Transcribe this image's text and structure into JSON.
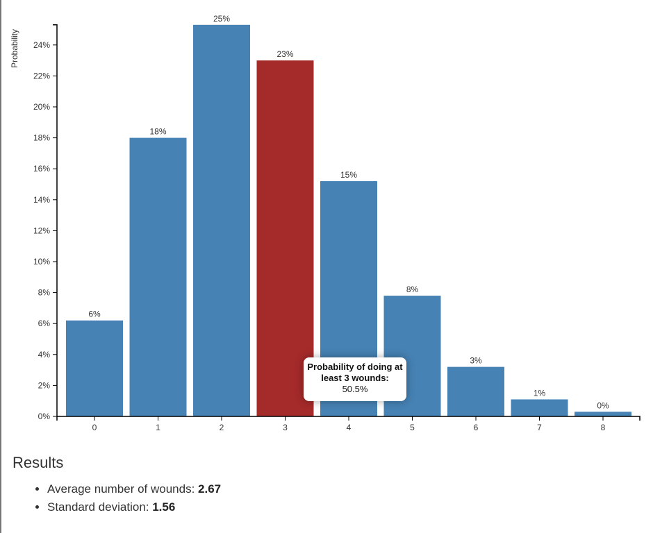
{
  "chart_data": {
    "type": "bar",
    "title": "",
    "xlabel": "",
    "ylabel": "Probability",
    "categories": [
      "0",
      "1",
      "2",
      "3",
      "4",
      "5",
      "6",
      "7",
      "8"
    ],
    "values": [
      6.2,
      18.0,
      25.3,
      23.0,
      15.2,
      7.8,
      3.2,
      1.1,
      0.3
    ],
    "data_labels": [
      "6%",
      "18%",
      "25%",
      "23%",
      "15%",
      "8%",
      "3%",
      "1%",
      "0%"
    ],
    "highlighted_category": "3",
    "colors": {
      "bar": "#4682b4",
      "highlight": "#a52a2a"
    },
    "y_ticks": [
      0,
      2,
      4,
      6,
      8,
      10,
      12,
      14,
      16,
      18,
      20,
      22,
      24
    ],
    "y_tick_labels": [
      "0%",
      "2%",
      "4%",
      "6%",
      "8%",
      "10%",
      "12%",
      "14%",
      "16%",
      "18%",
      "20%",
      "22%",
      "24%"
    ],
    "ylim": [
      0,
      25.3
    ],
    "grid": false
  },
  "tooltip": {
    "title": "Probability of doing at least 3 wounds:",
    "value": "50.5%"
  },
  "results": {
    "heading": "Results",
    "items": [
      {
        "label": "Average number of wounds: ",
        "value": "2.67"
      },
      {
        "label": "Standard deviation: ",
        "value": "1.56"
      }
    ]
  }
}
